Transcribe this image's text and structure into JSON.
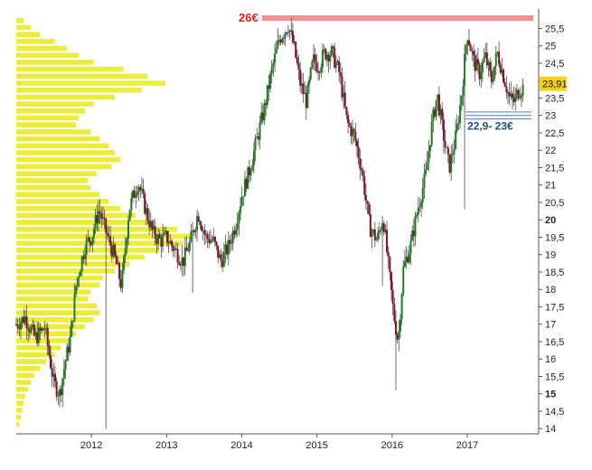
{
  "colors": {
    "background": "#ffffff",
    "up_candle": "#1e7a1e",
    "down_candle": "#7a1426",
    "wick": "#333333",
    "volume_profile": "#ecec3c",
    "volume_profile_edge": "#d8d820",
    "resistance_line": "#e02020",
    "support_lines": "#4a7fbf",
    "last_price_badge": "#f2d21a",
    "axis": "#555555"
  },
  "chart_data": {
    "type": "candlestick",
    "title": "",
    "xlabel": "",
    "ylabel": "",
    "ylim": [
      13.85,
      25.85
    ],
    "xlim": [
      2011.0,
      2017.95
    ],
    "grid": false,
    "y_ticks": [
      "14",
      "14,5",
      "15",
      "15,5",
      "16",
      "16,5",
      "17",
      "17,5",
      "18",
      "18,5",
      "19",
      "19,5",
      "20",
      "20,5",
      "21",
      "21,5",
      "22",
      "22,5",
      "23",
      "23,5",
      "24",
      "24,5",
      "25",
      "25,5"
    ],
    "y_tick_values": [
      14,
      14.5,
      15,
      15.5,
      16,
      16.5,
      17,
      17.5,
      18,
      18.5,
      19,
      19.5,
      20,
      20.5,
      21,
      21.5,
      22,
      22.5,
      23,
      23.5,
      24,
      24.5,
      25,
      25.5
    ],
    "x_ticks": [
      "2012",
      "2013",
      "2014",
      "2015",
      "2016",
      "2017"
    ],
    "x_tick_values": [
      2012,
      2013,
      2014,
      2015,
      2016,
      2017
    ],
    "last_price": "23,91",
    "last_price_value": 23.91,
    "price_path": [
      [
        2011.0,
        17.0
      ],
      [
        2011.12,
        17.2
      ],
      [
        2011.25,
        16.6
      ],
      [
        2011.38,
        16.9
      ],
      [
        2011.5,
        15.3
      ],
      [
        2011.58,
        15.0
      ],
      [
        2011.65,
        15.9
      ],
      [
        2011.72,
        16.6
      ],
      [
        2011.8,
        18.2
      ],
      [
        2011.92,
        19.3
      ],
      [
        2012.0,
        19.5
      ],
      [
        2012.1,
        20.3
      ],
      [
        2012.2,
        19.6
      ],
      [
        2012.3,
        19.0
      ],
      [
        2012.4,
        18.1
      ],
      [
        2012.5,
        20.3
      ],
      [
        2012.62,
        21.1
      ],
      [
        2012.72,
        20.3
      ],
      [
        2012.82,
        19.6
      ],
      [
        2012.92,
        19.4
      ],
      [
        2013.0,
        19.5
      ],
      [
        2013.12,
        19.1
      ],
      [
        2013.22,
        18.8
      ],
      [
        2013.32,
        19.4
      ],
      [
        2013.42,
        20.2
      ],
      [
        2013.52,
        19.5
      ],
      [
        2013.62,
        19.4
      ],
      [
        2013.72,
        18.8
      ],
      [
        2013.82,
        19.2
      ],
      [
        2013.92,
        19.9
      ],
      [
        2014.0,
        20.7
      ],
      [
        2014.1,
        21.4
      ],
      [
        2014.2,
        22.3
      ],
      [
        2014.3,
        23.2
      ],
      [
        2014.4,
        24.3
      ],
      [
        2014.5,
        25.2
      ],
      [
        2014.62,
        25.6
      ],
      [
        2014.7,
        24.9
      ],
      [
        2014.78,
        23.9
      ],
      [
        2014.86,
        23.4
      ],
      [
        2014.95,
        24.6
      ],
      [
        2015.02,
        24.4
      ],
      [
        2015.1,
        24.8
      ],
      [
        2015.2,
        24.8
      ],
      [
        2015.3,
        24.2
      ],
      [
        2015.4,
        22.8
      ],
      [
        2015.5,
        22.4
      ],
      [
        2015.6,
        21.4
      ],
      [
        2015.7,
        19.8
      ],
      [
        2015.8,
        19.4
      ],
      [
        2015.88,
        20.1
      ],
      [
        2015.95,
        18.7
      ],
      [
        2016.02,
        17.3
      ],
      [
        2016.08,
        16.5
      ],
      [
        2016.15,
        18.6
      ],
      [
        2016.25,
        19.3
      ],
      [
        2016.35,
        20.4
      ],
      [
        2016.45,
        21.3
      ],
      [
        2016.52,
        22.6
      ],
      [
        2016.6,
        23.6
      ],
      [
        2016.7,
        22.2
      ],
      [
        2016.76,
        21.5
      ],
      [
        2016.85,
        22.4
      ],
      [
        2016.92,
        23.5
      ],
      [
        2017.0,
        25.4
      ],
      [
        2017.08,
        24.6
      ],
      [
        2017.16,
        24.2
      ],
      [
        2017.24,
        24.7
      ],
      [
        2017.32,
        24.0
      ],
      [
        2017.4,
        24.8
      ],
      [
        2017.5,
        24.0
      ],
      [
        2017.56,
        23.5
      ],
      [
        2017.62,
        23.4
      ],
      [
        2017.68,
        23.7
      ],
      [
        2017.74,
        23.8
      ]
    ],
    "volume_profile": [
      [
        25.7,
        0.05
      ],
      [
        25.5,
        0.1
      ],
      [
        25.3,
        0.16
      ],
      [
        25.1,
        0.26
      ],
      [
        24.9,
        0.34
      ],
      [
        24.7,
        0.42
      ],
      [
        24.5,
        0.52
      ],
      [
        24.3,
        0.72
      ],
      [
        24.1,
        0.88
      ],
      [
        23.9,
        1.0
      ],
      [
        23.7,
        0.84
      ],
      [
        23.5,
        0.66
      ],
      [
        23.3,
        0.52
      ],
      [
        23.1,
        0.46
      ],
      [
        22.9,
        0.42
      ],
      [
        22.7,
        0.4
      ],
      [
        22.5,
        0.5
      ],
      [
        22.3,
        0.56
      ],
      [
        22.1,
        0.62
      ],
      [
        21.9,
        0.66
      ],
      [
        21.7,
        0.7
      ],
      [
        21.5,
        0.64
      ],
      [
        21.3,
        0.54
      ],
      [
        21.1,
        0.48
      ],
      [
        20.9,
        0.5
      ],
      [
        20.7,
        0.56
      ],
      [
        20.5,
        0.62
      ],
      [
        20.3,
        0.7
      ],
      [
        20.1,
        0.8
      ],
      [
        19.9,
        0.9
      ],
      [
        19.7,
        1.08
      ],
      [
        19.5,
        1.18
      ],
      [
        19.3,
        1.12
      ],
      [
        19.1,
        0.96
      ],
      [
        18.9,
        0.86
      ],
      [
        18.7,
        0.76
      ],
      [
        18.5,
        0.66
      ],
      [
        18.3,
        0.58
      ],
      [
        18.1,
        0.56
      ],
      [
        17.9,
        0.5
      ],
      [
        17.7,
        0.48
      ],
      [
        17.5,
        0.54
      ],
      [
        17.3,
        0.56
      ],
      [
        17.1,
        0.52
      ],
      [
        16.9,
        0.46
      ],
      [
        16.7,
        0.4
      ],
      [
        16.5,
        0.34
      ],
      [
        16.3,
        0.3
      ],
      [
        16.1,
        0.26
      ],
      [
        15.9,
        0.2
      ],
      [
        15.7,
        0.16
      ],
      [
        15.5,
        0.12
      ],
      [
        15.3,
        0.1
      ],
      [
        15.1,
        0.08
      ],
      [
        14.9,
        0.06
      ],
      [
        14.7,
        0.05
      ],
      [
        14.5,
        0.04
      ],
      [
        14.3,
        0.03
      ],
      [
        14.1,
        0.02
      ]
    ],
    "annotations": [
      {
        "type": "resistance",
        "label": "26€",
        "value": 25.85
      },
      {
        "type": "support",
        "label": "22,9- 23€",
        "values": [
          22.9,
          23.0,
          23.1
        ]
      }
    ]
  }
}
